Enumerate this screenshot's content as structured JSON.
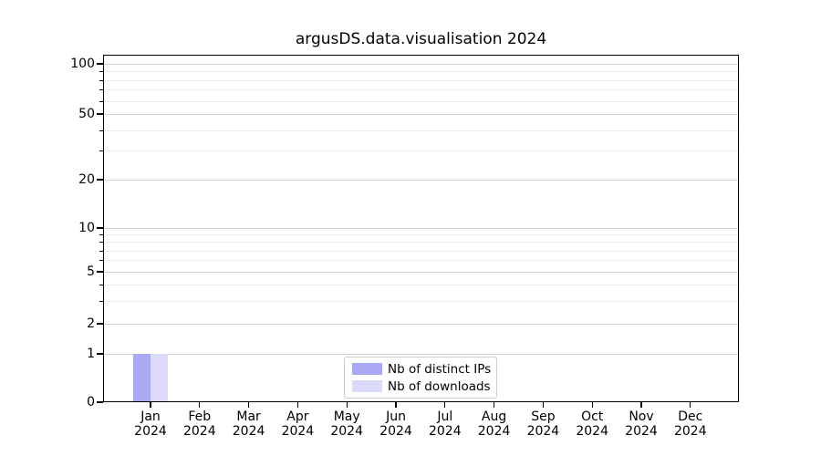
{
  "title": "argusDS.data.visualisation 2024",
  "chart_data": {
    "type": "bar",
    "title": "argusDS.data.visualisation 2024",
    "categories": [
      "Jan 2024",
      "Feb 2024",
      "Mar 2024",
      "Apr 2024",
      "May 2024",
      "Jun 2024",
      "Jul 2024",
      "Aug 2024",
      "Sep 2024",
      "Oct 2024",
      "Nov 2024",
      "Dec 2024"
    ],
    "series": [
      {
        "name": "Nb of distinct IPs",
        "color": "#a9a9f4",
        "values": [
          1,
          0,
          0,
          0,
          0,
          0,
          0,
          0,
          0,
          0,
          0,
          0
        ]
      },
      {
        "name": "Nb of downloads",
        "color": "#dbdbf9",
        "values": [
          1,
          0,
          0,
          0,
          0,
          0,
          0,
          0,
          0,
          0,
          0,
          0
        ]
      }
    ],
    "xlabel": "",
    "ylabel": "",
    "yscale": "symlog",
    "ylim": [
      0,
      113
    ],
    "y_major_ticks": [
      0,
      1,
      2,
      5,
      10,
      20,
      50,
      100
    ],
    "y_minor_ticks": [
      3,
      4,
      6,
      7,
      8,
      9,
      30,
      40,
      60,
      70,
      80,
      90
    ],
    "grid": true,
    "legend_position": "lower center"
  },
  "colors": {
    "background": "#ffffff",
    "grid_major": "#d2d2d2",
    "grid_minor": "#ebebeb",
    "spine": "#000000",
    "legend_border": "#cccccc"
  }
}
